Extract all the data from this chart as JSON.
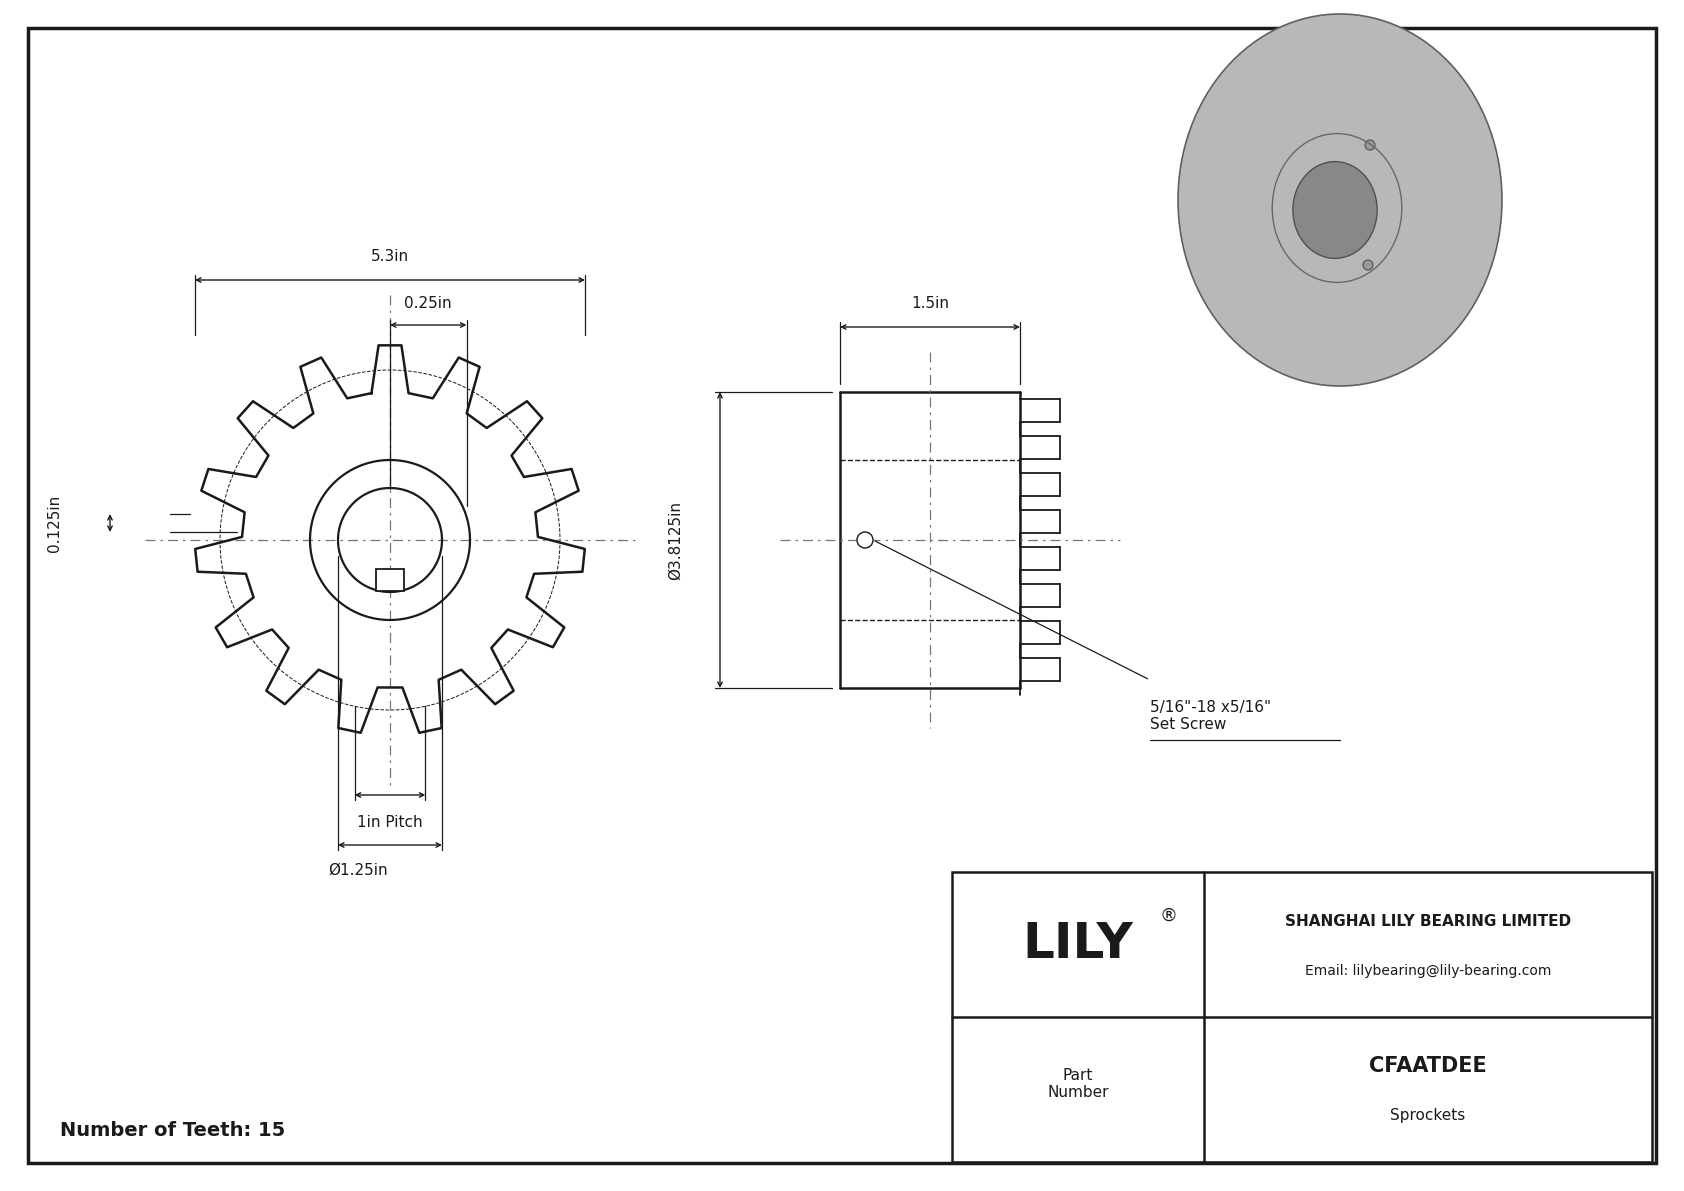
{
  "bg_color": "#ffffff",
  "line_color": "#1a1a1a",
  "dim_color": "#1a1a1a",
  "title": "CFAATDEE",
  "subtitle": "Sprockets",
  "company": "SHANGHAI LILY BEARING LIMITED",
  "email": "Email: lilybearing@lily-bearing.com",
  "part_label": "Part\nNumber",
  "num_teeth": "Number of Teeth: 15",
  "n_teeth": 15,
  "dim_53": "5.3in",
  "dim_025": "0.25in",
  "dim_0125": "0.125in",
  "dim_1pitch": "1in Pitch",
  "dim_bore": "Ø1.25in",
  "dim_width": "1.5in",
  "dim_od": "Ø3.8125in",
  "dim_setscrew": "5/16\"-18 x5/16\"\nSet Screw"
}
